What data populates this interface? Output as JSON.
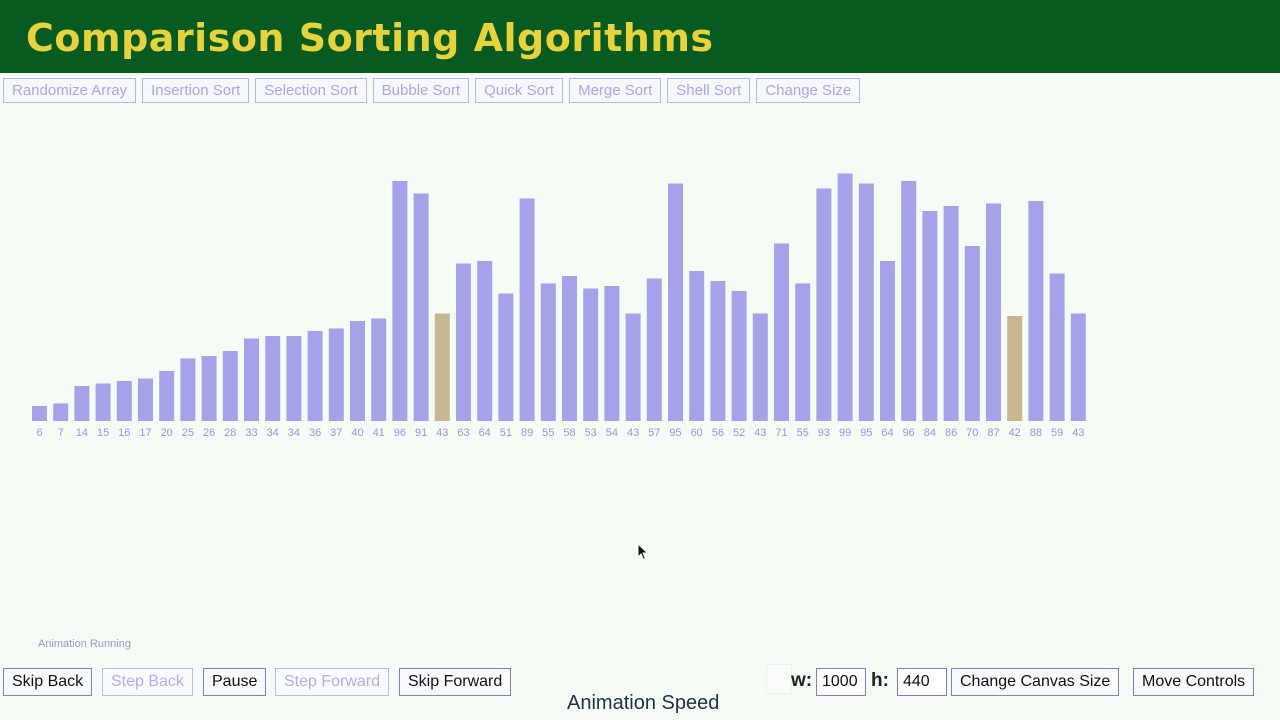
{
  "header": {
    "title": "Comparison Sorting Algorithms"
  },
  "algorithm_buttons": [
    "Randomize Array",
    "Insertion Sort",
    "Selection Sort",
    "Bubble Sort",
    "Quick Sort",
    "Merge Sort",
    "Shell Sort",
    "Change Size"
  ],
  "chart_data": {
    "type": "bar",
    "values": [
      6,
      7,
      14,
      15,
      16,
      17,
      20,
      25,
      26,
      28,
      33,
      34,
      34,
      36,
      37,
      40,
      41,
      96,
      91,
      43,
      63,
      64,
      51,
      89,
      55,
      58,
      53,
      54,
      43,
      57,
      95,
      60,
      56,
      52,
      43,
      71,
      55,
      93,
      99,
      95,
      64,
      96,
      84,
      86,
      70,
      87,
      42,
      88,
      59,
      43
    ],
    "highlighted_indices": [
      19,
      46
    ],
    "colors": {
      "bar": "#a6a2ea",
      "highlight": "#c8b690",
      "label": "#9996e0"
    }
  },
  "status": {
    "text": "Animation Running"
  },
  "controls": {
    "skip_back": "Skip Back",
    "step_back": "Step Back",
    "pause": "Pause",
    "step_forward": "Step Forward",
    "skip_forward": "Skip Forward",
    "width_label": "w:",
    "width_value": "1000",
    "height_label": "h:",
    "height_value": "440",
    "change_canvas_size": "Change Canvas Size",
    "move_controls": "Move Controls",
    "animation_speed": "Animation Speed"
  },
  "colors": {
    "header_bg": "#075a20",
    "title": "#e6d23c",
    "page_bg": "#f5fbf5"
  }
}
